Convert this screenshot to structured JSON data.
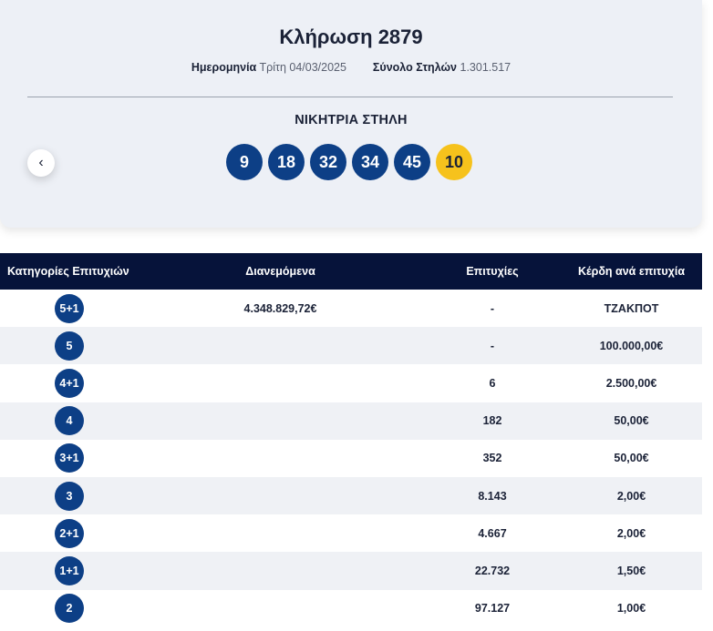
{
  "draw": {
    "title": "Κλήρωση 2879",
    "date_label": "Ημερομηνία",
    "date_value": "Τρίτη 04/03/2025",
    "columns_label": "Σύνολο Στηλών",
    "columns_value": "1.301.517",
    "winning_label": "ΝΙΚΗΤΡΙΑ ΣΤΗΛΗ",
    "numbers": [
      "9",
      "18",
      "32",
      "34",
      "45"
    ],
    "joker": "10",
    "prev_icon": "chevron-left-icon",
    "prev_glyph": "‹"
  },
  "colors": {
    "ball": "#0d3f86",
    "joker": "#f6c21c",
    "header": "#06133a"
  },
  "table": {
    "headers": [
      "Κατηγορίες Επιτυχιών",
      "Διανεμόμενα",
      "Επιτυχίες",
      "Κέρδη ανά επιτυχία"
    ],
    "rows": [
      {
        "category": "5+1",
        "distributed": "4.348.829,72€",
        "winners": "-",
        "prize": "ΤΖΑΚΠΟΤ"
      },
      {
        "category": "5",
        "distributed": "",
        "winners": "-",
        "prize": "100.000,00€"
      },
      {
        "category": "4+1",
        "distributed": "",
        "winners": "6",
        "prize": "2.500,00€"
      },
      {
        "category": "4",
        "distributed": "",
        "winners": "182",
        "prize": "50,00€"
      },
      {
        "category": "3+1",
        "distributed": "",
        "winners": "352",
        "prize": "50,00€"
      },
      {
        "category": "3",
        "distributed": "",
        "winners": "8.143",
        "prize": "2,00€"
      },
      {
        "category": "2+1",
        "distributed": "",
        "winners": "4.667",
        "prize": "2,00€"
      },
      {
        "category": "1+1",
        "distributed": "",
        "winners": "22.732",
        "prize": "1,50€"
      },
      {
        "category": "2",
        "distributed": "",
        "winners": "97.127",
        "prize": "1,00€"
      }
    ]
  }
}
